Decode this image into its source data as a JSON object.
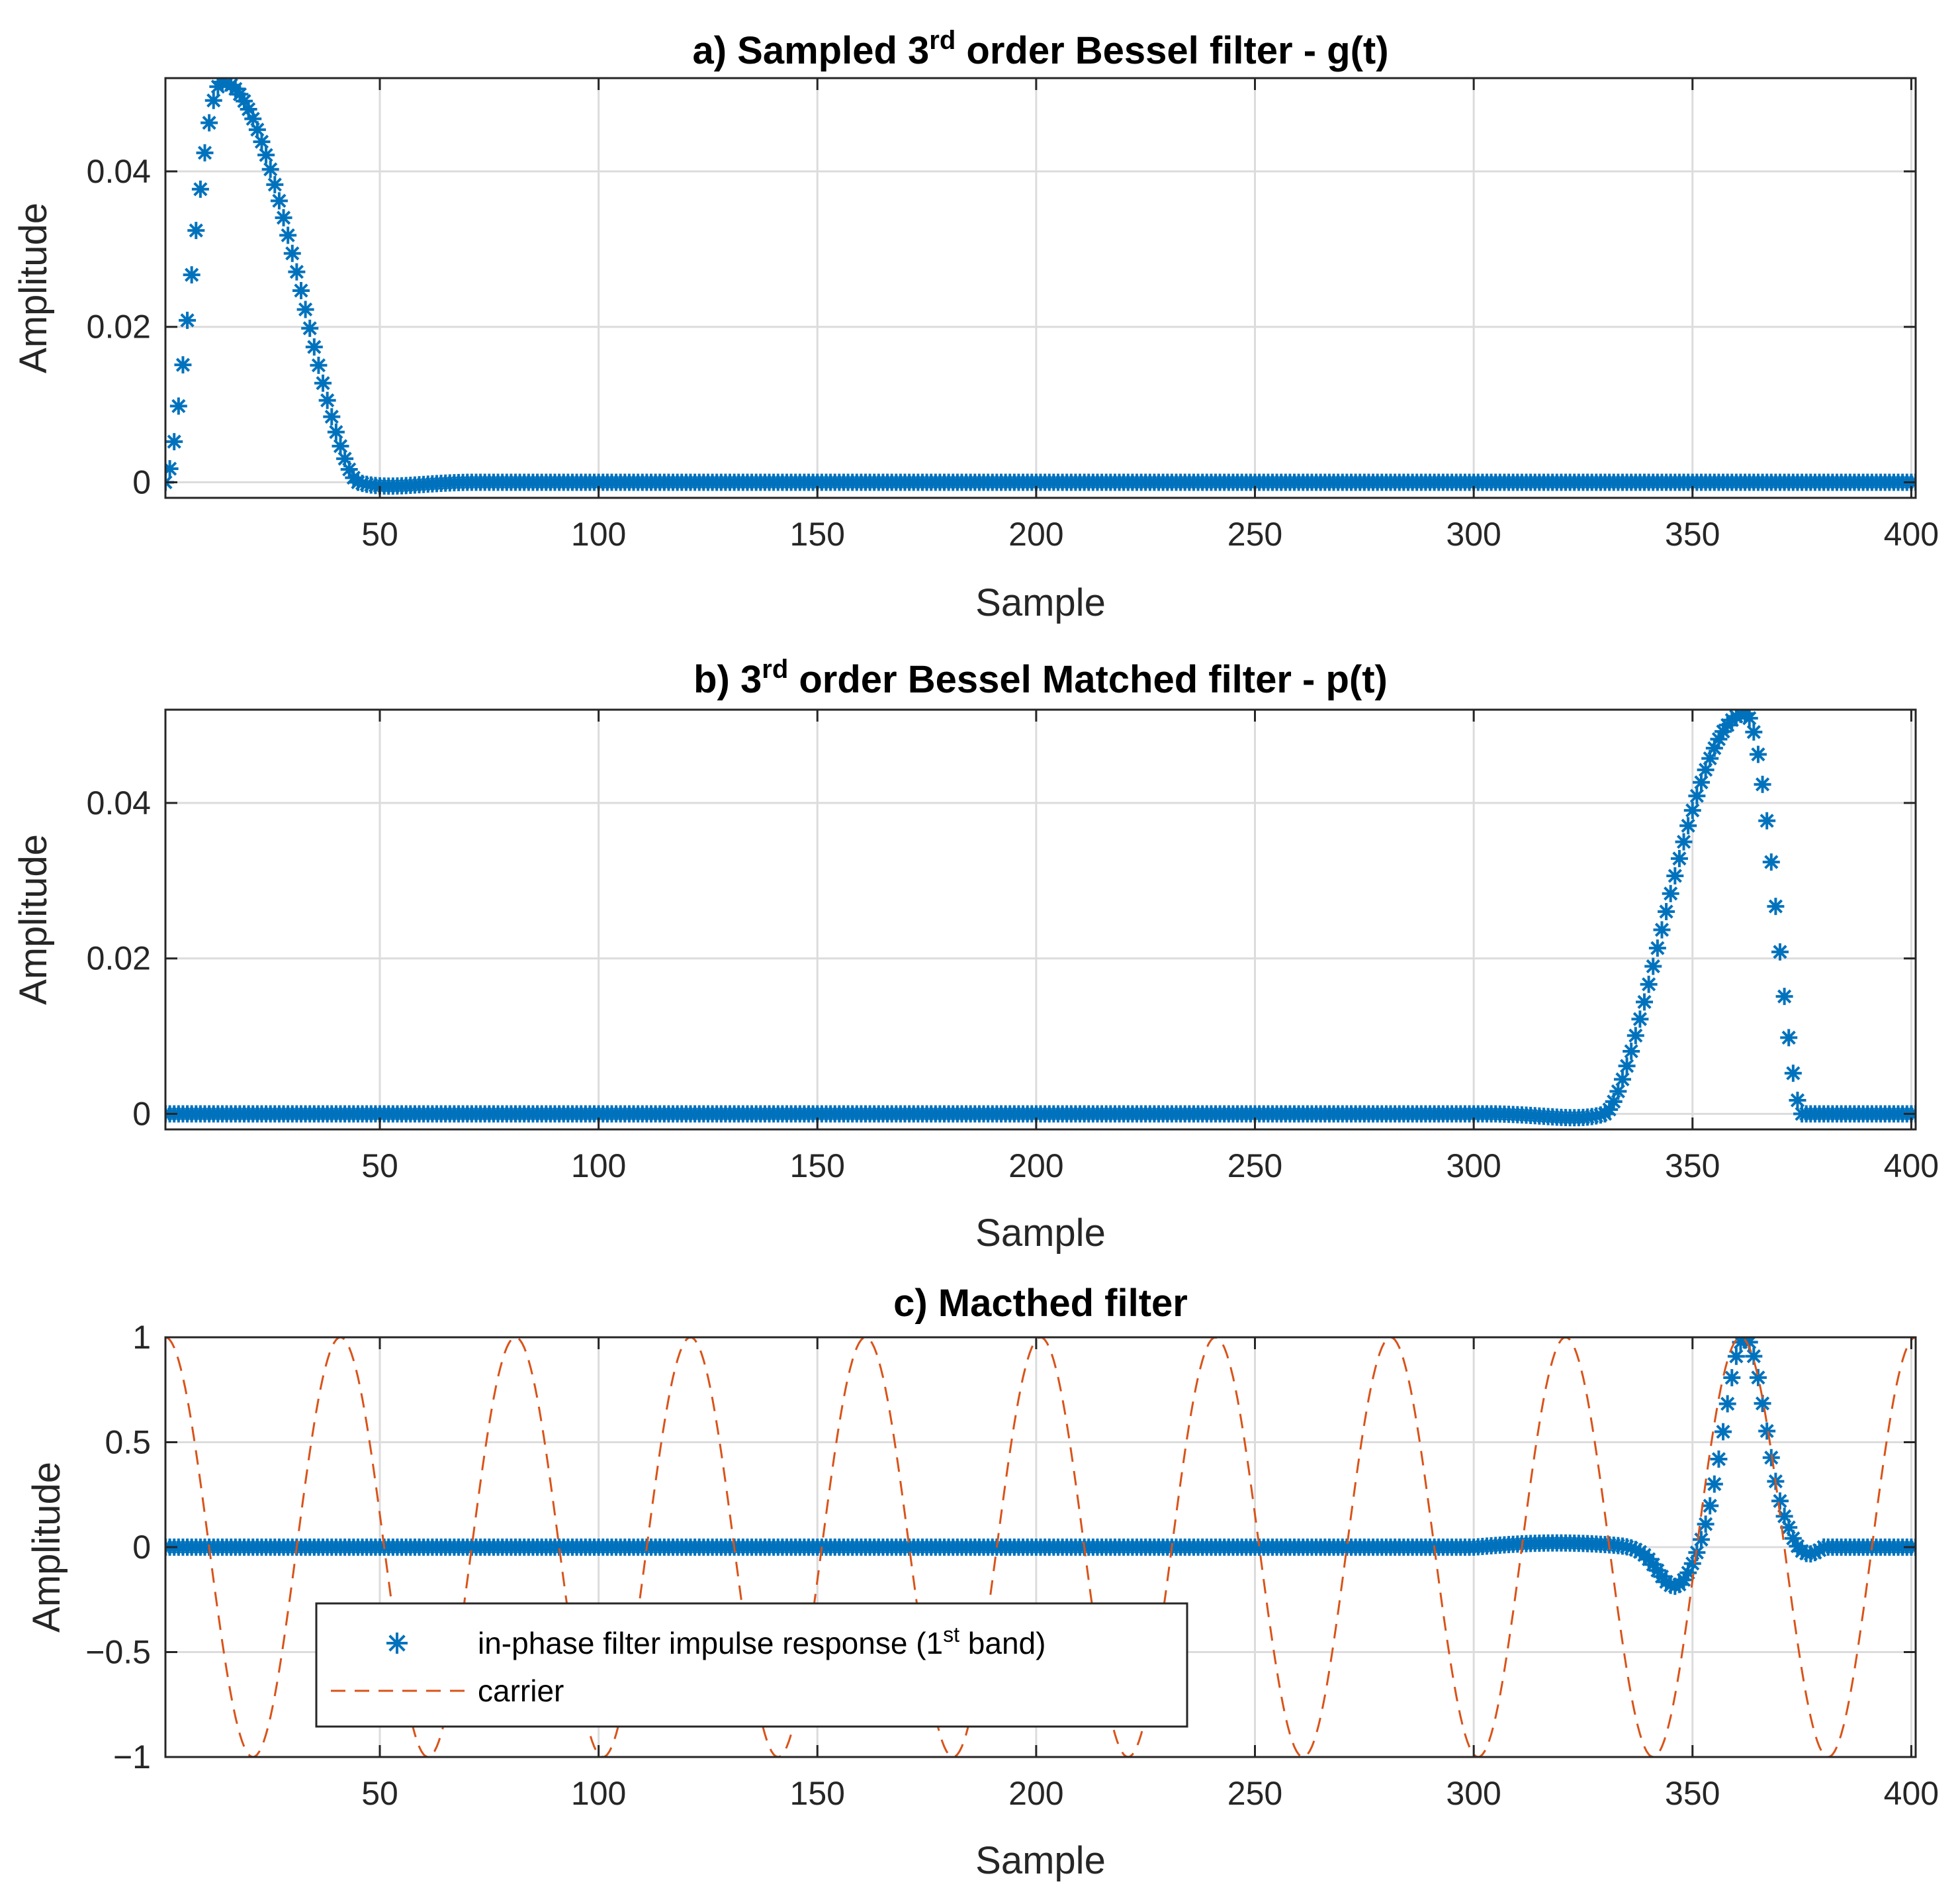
{
  "chart_data": [
    {
      "type": "scatter",
      "title": {
        "prefix": "a) Sampled 3",
        "sup": "rd",
        "suffix": " order Bessel filter - g(t)"
      },
      "xlabel": "Sample",
      "ylabel": "Amplitude",
      "xlim": [
        1,
        401
      ],
      "ylim": [
        -0.002,
        0.052
      ],
      "xticks": [
        50,
        100,
        150,
        200,
        250,
        300,
        350,
        400
      ],
      "yticks": [
        0,
        0.02,
        0.04
      ],
      "ytick_labels": [
        "0",
        "0.02",
        "0.04"
      ],
      "grid": true,
      "series": [
        {
          "name": "g(t)",
          "marker": "asterisk",
          "color": "#0072BD",
          "shape": "bessel_pulse",
          "peak_sample": 14,
          "peak_value": 0.0515,
          "support": [
            1,
            45
          ],
          "tail_value": 0.0,
          "n_samples": 401
        }
      ]
    },
    {
      "type": "scatter",
      "title": {
        "prefix": "b) 3",
        "sup": "rd",
        "suffix": " order Bessel Matched filter - p(t)"
      },
      "xlabel": "Sample",
      "ylabel": "Amplitude",
      "xlim": [
        1,
        401
      ],
      "ylim": [
        -0.002,
        0.052
      ],
      "xticks": [
        50,
        100,
        150,
        200,
        250,
        300,
        350,
        400
      ],
      "yticks": [
        0,
        0.02,
        0.04
      ],
      "ytick_labels": [
        "0",
        "0.02",
        "0.04"
      ],
      "grid": true,
      "series": [
        {
          "name": "p(t)",
          "marker": "asterisk",
          "color": "#0072BD",
          "shape": "bessel_pulse_reversed",
          "peak_sample": 362,
          "peak_value": 0.0515,
          "support": [
            330,
            375
          ],
          "tail_value": 0.0,
          "n_samples": 401
        }
      ]
    },
    {
      "type": "line",
      "title": {
        "prefix": "c) Macthed filter",
        "sup": "",
        "suffix": ""
      },
      "xlabel": "Sample",
      "ylabel": "Amplitude",
      "xlim": [
        1,
        401
      ],
      "ylim": [
        -1,
        1
      ],
      "xticks": [
        50,
        100,
        150,
        200,
        250,
        300,
        350,
        400
      ],
      "yticks": [
        -1,
        -0.5,
        0,
        0.5,
        1
      ],
      "ytick_labels": [
        "−1",
        "−0.5",
        "0",
        "0.5",
        "1"
      ],
      "grid": true,
      "legend": {
        "placement": "bottom-left",
        "entries": [
          {
            "prefix": "in-phase filter impulse response (1",
            "sup": "st",
            "suffix": " band)"
          },
          {
            "prefix": "carrier",
            "sup": "",
            "suffix": ""
          }
        ]
      },
      "series": [
        {
          "name": "in-phase filter impulse response (1st band)",
          "marker": "asterisk",
          "color": "#0072BD",
          "shape": "modulated_pulse",
          "peak_sample": 362,
          "peak_value": 1.0,
          "min_sample": 346,
          "min_value": -0.18,
          "n_samples": 401
        },
        {
          "name": "carrier",
          "line_style": "dashed",
          "color": "#D95319",
          "shape": "cosine",
          "period_samples": 40,
          "phase_peak_sample": 1,
          "amplitude": 1.0
        }
      ]
    }
  ]
}
